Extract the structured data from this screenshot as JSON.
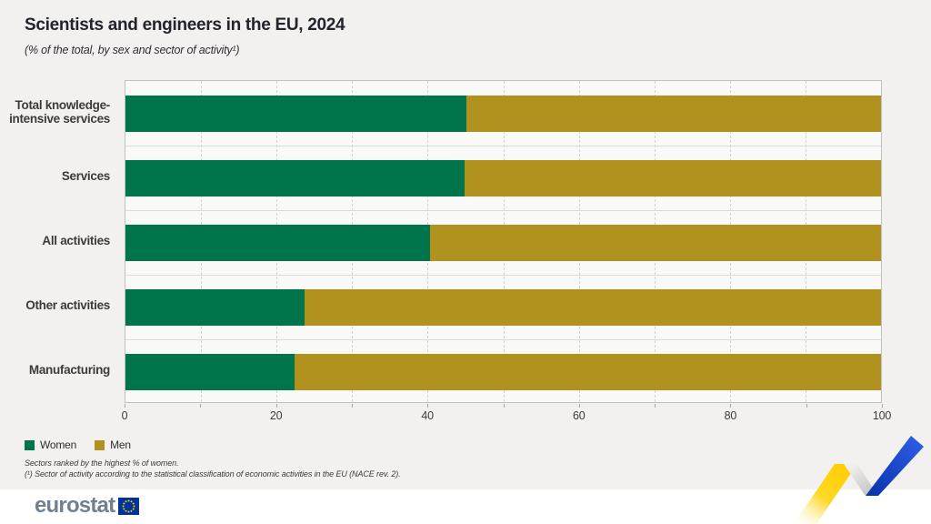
{
  "title": "Scientists and engineers in the EU, 2024",
  "subtitle": "(% of the total, by sex and sector of activity¹)",
  "chart_data": {
    "type": "bar",
    "orientation": "horizontal",
    "stacked": true,
    "unit": "%",
    "categories": [
      "Total knowledge-\nintensive services",
      "Services",
      "All activities",
      "Other activities",
      "Manufacturing"
    ],
    "series": [
      {
        "name": "Women",
        "color": "#00744b",
        "values": [
          45.1,
          44.9,
          40.3,
          23.7,
          22.4
        ]
      },
      {
        "name": "Men",
        "color": "#b2921f",
        "values": [
          54.9,
          55.1,
          59.7,
          76.3,
          77.6
        ]
      }
    ],
    "xlim": [
      0,
      100
    ],
    "x_ticks": [
      "0",
      "20",
      "40",
      "60",
      "80",
      "100"
    ],
    "grid_step": 10,
    "legend_position": "bottom-left",
    "sort_note": "Sectors ranked by the highest % of women."
  },
  "footnotes": [
    "Sectors ranked by the highest % of women.",
    "(¹) Sector of activity according to the statistical classification of economic activities in the EU (NACE rev. 2)."
  ],
  "branding": {
    "logo_text": "eurostat",
    "flag_color": "#003399",
    "star_color": "#ffcc00",
    "ribbon_yellow": "#ffd314",
    "ribbon_blue": "#1747d8"
  }
}
